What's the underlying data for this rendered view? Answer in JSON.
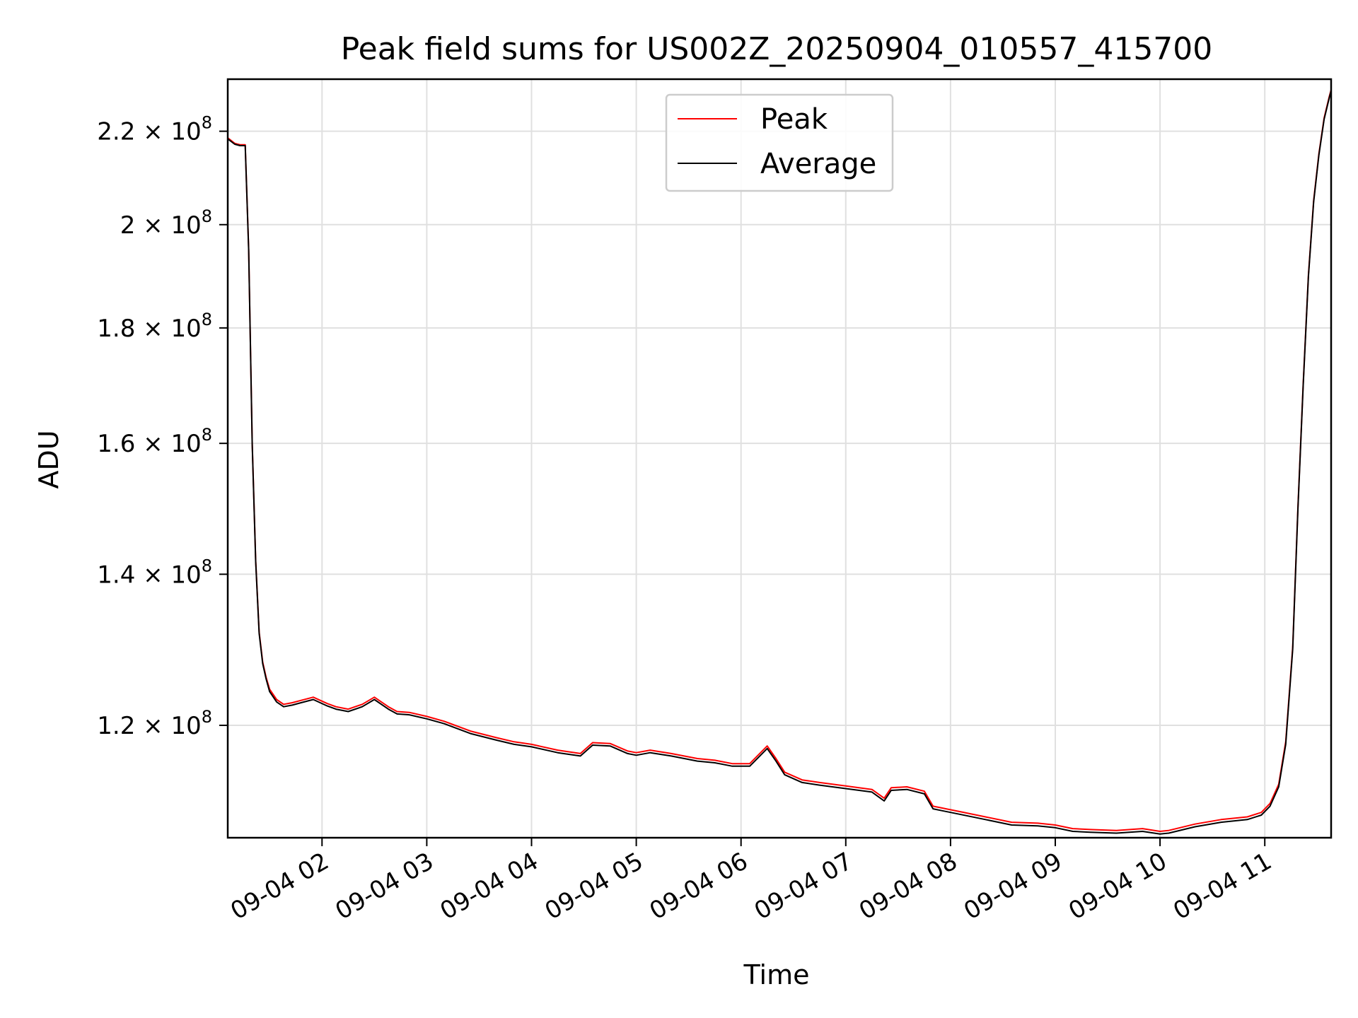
{
  "chart_data": {
    "type": "line",
    "title": "Peak field sums for US002Z_20250904_010557_415700",
    "xlabel": "Time",
    "ylabel": "ADU",
    "xlim": [
      "2025-09-04 01:06",
      "2025-09-04 11:38"
    ],
    "ylim": [
      107000000,
      232000000
    ],
    "yscale": "log",
    "grid": true,
    "legend_position": "top-center",
    "x_ticks": [
      {
        "value": "2025-09-04 02:00",
        "label": "09-04 02"
      },
      {
        "value": "2025-09-04 03:00",
        "label": "09-04 03"
      },
      {
        "value": "2025-09-04 04:00",
        "label": "09-04 04"
      },
      {
        "value": "2025-09-04 05:00",
        "label": "09-04 05"
      },
      {
        "value": "2025-09-04 06:00",
        "label": "09-04 06"
      },
      {
        "value": "2025-09-04 07:00",
        "label": "09-04 07"
      },
      {
        "value": "2025-09-04 08:00",
        "label": "09-04 08"
      },
      {
        "value": "2025-09-04 09:00",
        "label": "09-04 09"
      },
      {
        "value": "2025-09-04 10:00",
        "label": "09-04 10"
      },
      {
        "value": "2025-09-04 11:00",
        "label": "09-04 11"
      }
    ],
    "y_ticks": [
      {
        "value": 120000000,
        "mantissa": "1.2",
        "base": "10",
        "exp": "8"
      },
      {
        "value": 140000000,
        "mantissa": "1.4",
        "base": "10",
        "exp": "8"
      },
      {
        "value": 160000000,
        "mantissa": "1.6",
        "base": "10",
        "exp": "8"
      },
      {
        "value": 180000000,
        "mantissa": "1.8",
        "base": "10",
        "exp": "8"
      },
      {
        "value": 200000000,
        "mantissa": "2",
        "base": "10",
        "exp": "8"
      },
      {
        "value": 220000000,
        "mantissa": "2.2",
        "base": "10",
        "exp": "8"
      }
    ],
    "x": [
      "2025-09-04 01:06",
      "2025-09-04 01:10",
      "2025-09-04 01:13",
      "2025-09-04 01:16",
      "2025-09-04 01:18",
      "2025-09-04 01:20",
      "2025-09-04 01:22",
      "2025-09-04 01:24",
      "2025-09-04 01:26",
      "2025-09-04 01:28",
      "2025-09-04 01:30",
      "2025-09-04 01:34",
      "2025-09-04 01:38",
      "2025-09-04 01:43",
      "2025-09-04 01:48",
      "2025-09-04 01:55",
      "2025-09-04 02:03",
      "2025-09-04 02:08",
      "2025-09-04 02:15",
      "2025-09-04 02:23",
      "2025-09-04 02:30",
      "2025-09-04 02:38",
      "2025-09-04 02:43",
      "2025-09-04 02:50",
      "2025-09-04 03:00",
      "2025-09-04 03:10",
      "2025-09-04 03:25",
      "2025-09-04 03:40",
      "2025-09-04 03:50",
      "2025-09-04 04:00",
      "2025-09-04 04:15",
      "2025-09-04 04:28",
      "2025-09-04 04:35",
      "2025-09-04 04:45",
      "2025-09-04 04:55",
      "2025-09-04 05:00",
      "2025-09-04 05:08",
      "2025-09-04 05:20",
      "2025-09-04 05:35",
      "2025-09-04 05:45",
      "2025-09-04 05:55",
      "2025-09-04 06:05",
      "2025-09-04 06:15",
      "2025-09-04 06:20",
      "2025-09-04 06:25",
      "2025-09-04 06:35",
      "2025-09-04 06:45",
      "2025-09-04 07:00",
      "2025-09-04 07:15",
      "2025-09-04 07:22",
      "2025-09-04 07:26",
      "2025-09-04 07:35",
      "2025-09-04 07:45",
      "2025-09-04 07:50",
      "2025-09-04 07:55",
      "2025-09-04 08:05",
      "2025-09-04 08:20",
      "2025-09-04 08:35",
      "2025-09-04 08:50",
      "2025-09-04 09:00",
      "2025-09-04 09:10",
      "2025-09-04 09:20",
      "2025-09-04 09:35",
      "2025-09-04 09:50",
      "2025-09-04 10:00",
      "2025-09-04 10:05",
      "2025-09-04 10:20",
      "2025-09-04 10:35",
      "2025-09-04 10:50",
      "2025-09-04 10:58",
      "2025-09-04 11:03",
      "2025-09-04 11:08",
      "2025-09-04 11:12",
      "2025-09-04 11:16",
      "2025-09-04 11:19",
      "2025-09-04 11:22",
      "2025-09-04 11:25",
      "2025-09-04 11:28",
      "2025-09-04 11:31",
      "2025-09-04 11:34",
      "2025-09-04 11:37",
      "2025-09-04 11:38"
    ],
    "series": [
      {
        "name": "Peak",
        "color": "#ff0000",
        "values": [
          218500000,
          217300000,
          217000000,
          217000000,
          195000000,
          160000000,
          142000000,
          132000000,
          128000000,
          126000000,
          124500000,
          123200000,
          122600000,
          122800000,
          123100000,
          123500000,
          122700000,
          122300000,
          122000000,
          122600000,
          123500000,
          122300000,
          121700000,
          121600000,
          121100000,
          120500000,
          119300000,
          118500000,
          118000000,
          117700000,
          117000000,
          116600000,
          117900000,
          117800000,
          116900000,
          116700000,
          117000000,
          116600000,
          116000000,
          115800000,
          115400000,
          115400000,
          117500000,
          116000000,
          114400000,
          113500000,
          113200000,
          112800000,
          112400000,
          111400000,
          112600000,
          112700000,
          112200000,
          110500000,
          110300000,
          109900000,
          109300000,
          108700000,
          108600000,
          108400000,
          108000000,
          107900000,
          107800000,
          108000000,
          107700000,
          107800000,
          108500000,
          109000000,
          109300000,
          109800000,
          110800000,
          113000000,
          118000000,
          130000000,
          150000000,
          170000000,
          190000000,
          205000000,
          215000000,
          223000000,
          228000000,
          229500000
        ]
      },
      {
        "name": "Average",
        "color": "#000000",
        "values": [
          218300000,
          217100000,
          216800000,
          216800000,
          194800000,
          159800000,
          141800000,
          131800000,
          127800000,
          125800000,
          124200000,
          122900000,
          122300000,
          122500000,
          122800000,
          123200000,
          122400000,
          122000000,
          121700000,
          122300000,
          123200000,
          122000000,
          121400000,
          121300000,
          120800000,
          120200000,
          119000000,
          118200000,
          117700000,
          117400000,
          116700000,
          116300000,
          117600000,
          117500000,
          116600000,
          116400000,
          116700000,
          116300000,
          115700000,
          115500000,
          115100000,
          115100000,
          117200000,
          115700000,
          114100000,
          113200000,
          112900000,
          112500000,
          112100000,
          111100000,
          112300000,
          112400000,
          111900000,
          110200000,
          110000000,
          109600000,
          109000000,
          108400000,
          108300000,
          108100000,
          107700000,
          107600000,
          107500000,
          107700000,
          107400000,
          107500000,
          108200000,
          108700000,
          109000000,
          109500000,
          110500000,
          112700000,
          117700000,
          129700000,
          149700000,
          169700000,
          189700000,
          204700000,
          214700000,
          222700000,
          227700000,
          229300000
        ]
      }
    ]
  }
}
